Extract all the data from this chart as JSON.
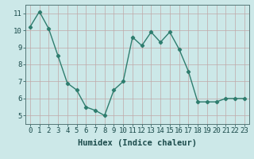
{
  "x": [
    0,
    1,
    2,
    3,
    4,
    5,
    6,
    7,
    8,
    9,
    10,
    11,
    12,
    13,
    14,
    15,
    16,
    17,
    18,
    19,
    20,
    21,
    22,
    23
  ],
  "y": [
    10.2,
    11.1,
    10.1,
    8.5,
    6.9,
    6.5,
    5.5,
    5.3,
    5.0,
    6.5,
    7.0,
    9.6,
    9.1,
    9.9,
    9.3,
    9.9,
    8.9,
    7.6,
    5.8,
    5.8,
    5.8,
    6.0,
    6.0,
    6.0
  ],
  "line_color": "#2e7d6e",
  "marker": "D",
  "marker_size": 2.2,
  "bg_color": "#cce8e8",
  "grid_color": "#c0a8a8",
  "xlabel": "Humidex (Indice chaleur)",
  "xlim": [
    -0.5,
    23.5
  ],
  "ylim": [
    4.5,
    11.5
  ],
  "yticks": [
    5,
    6,
    7,
    8,
    9,
    10,
    11
  ],
  "xticks": [
    0,
    1,
    2,
    3,
    4,
    5,
    6,
    7,
    8,
    9,
    10,
    11,
    12,
    13,
    14,
    15,
    16,
    17,
    18,
    19,
    20,
    21,
    22,
    23
  ],
  "tick_label_fontsize": 6.5,
  "xlabel_fontsize": 7.5,
  "linewidth": 1.0
}
